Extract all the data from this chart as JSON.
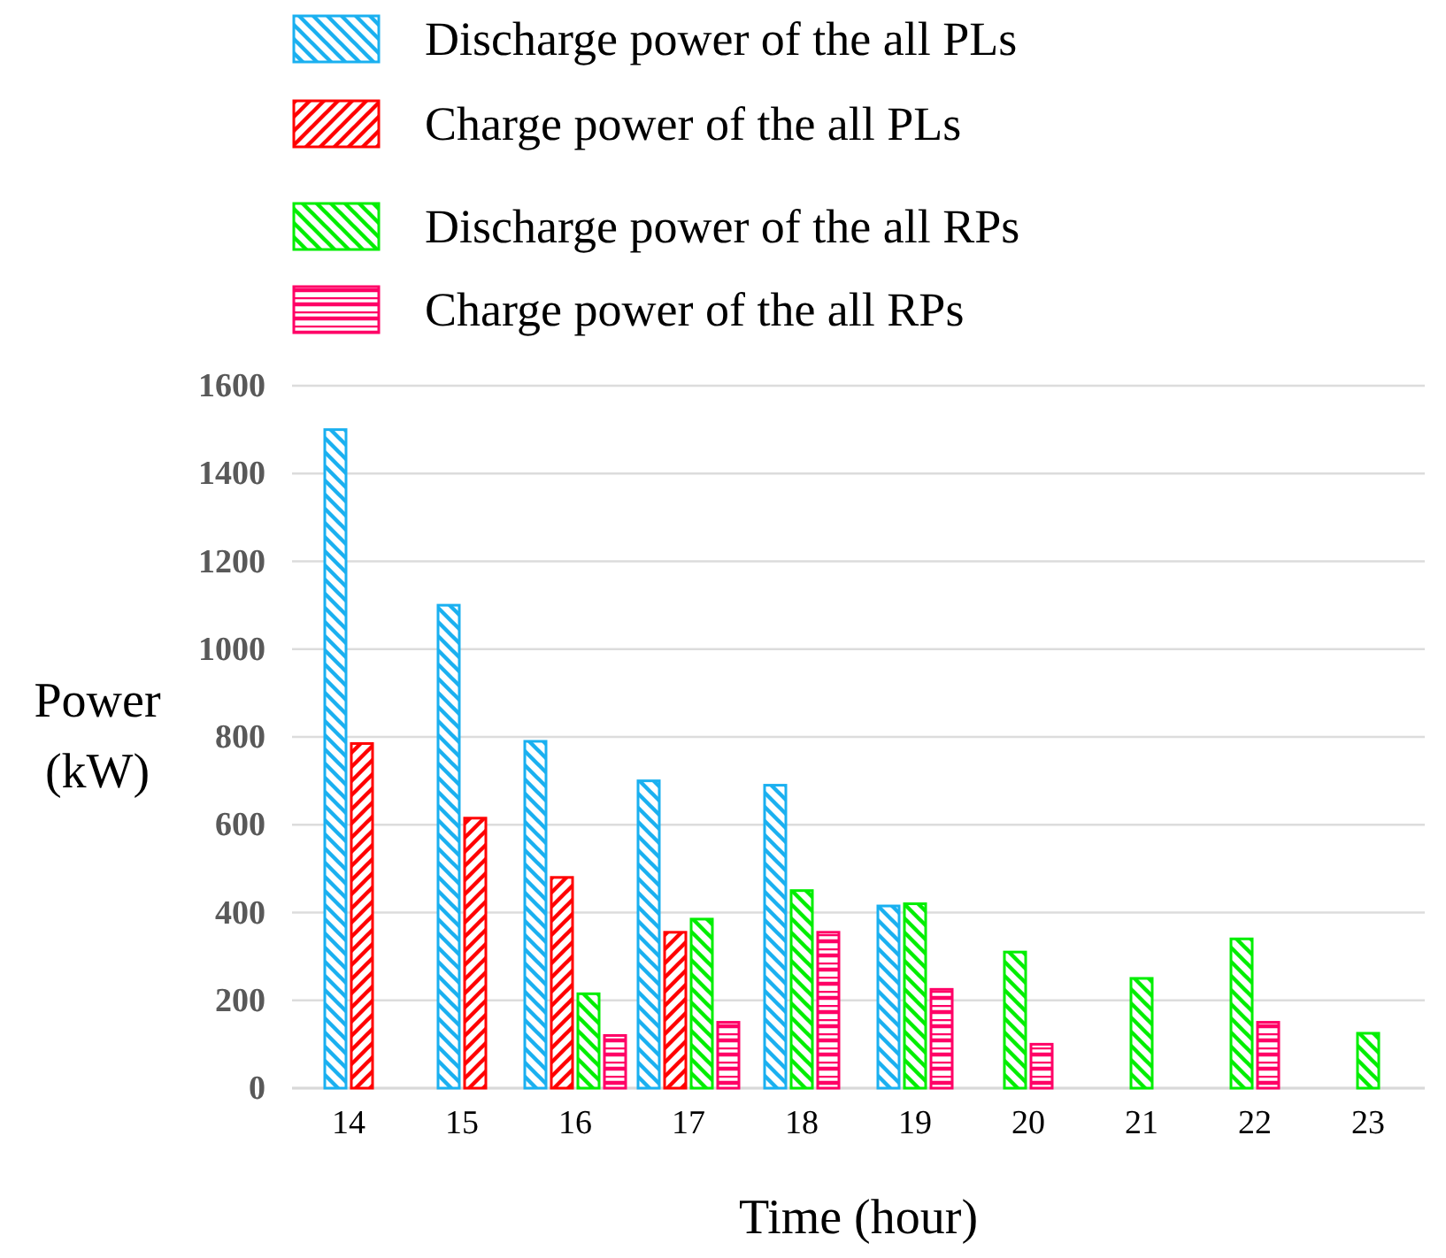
{
  "chart_data": {
    "type": "bar",
    "xlabel": "Time (hour)",
    "ylabel": "Power\n(kW)",
    "categories": [
      "14",
      "15",
      "16",
      "17",
      "18",
      "19",
      "20",
      "21",
      "22",
      "23"
    ],
    "series": [
      {
        "name": "Discharge power of the all PLs",
        "color": "#1ab0f0",
        "values": [
          1500,
          1100,
          790,
          700,
          690,
          415,
          null,
          null,
          null,
          null
        ]
      },
      {
        "name": "Charge power of the all PLs",
        "color": "#ff0000",
        "values": [
          785,
          615,
          480,
          355,
          null,
          null,
          null,
          null,
          null,
          null
        ]
      },
      {
        "name": "Discharge power of the all RPs",
        "color": "#00ee00",
        "values": [
          null,
          null,
          215,
          385,
          450,
          420,
          310,
          250,
          340,
          125
        ]
      },
      {
        "name": "Charge power of the all RPs",
        "color": "#ff0066",
        "values": [
          null,
          null,
          120,
          150,
          355,
          225,
          100,
          null,
          150,
          null
        ]
      }
    ],
    "ylim": [
      0,
      1600
    ],
    "yticks": [
      0,
      200,
      400,
      600,
      800,
      1000,
      1200,
      1400,
      1600
    ],
    "grid": "y",
    "legend": "top"
  }
}
